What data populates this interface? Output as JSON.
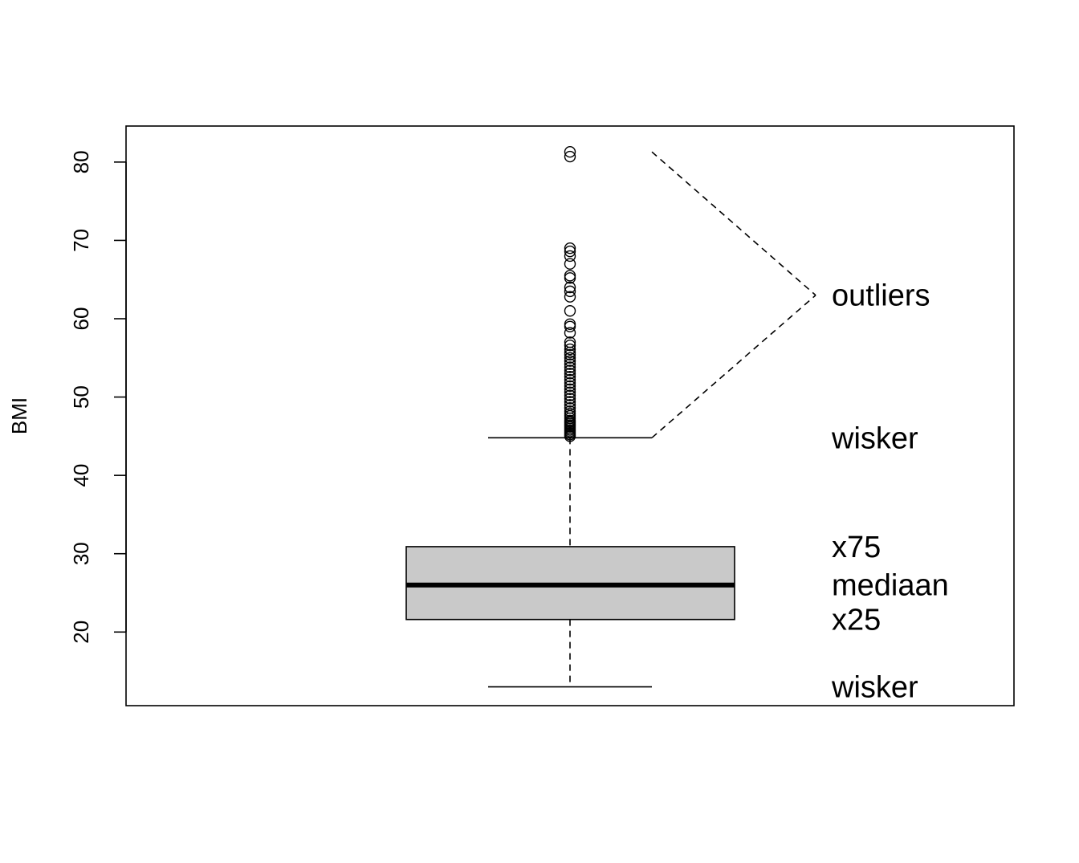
{
  "chart_data": {
    "type": "boxplot",
    "ylabel": "BMI",
    "ylim": [
      10.6,
      84.6
    ],
    "yticks": [
      20,
      30,
      40,
      50,
      60,
      70,
      80
    ],
    "grid": false,
    "box": {
      "whisker_low": 13,
      "q1": 21.6,
      "median": 26,
      "q3": 30.9,
      "whisker_high": 44.8,
      "fill": "#c9c9c9"
    },
    "outliers": [
      81.3,
      80.7,
      69.0,
      68.6,
      68.0,
      67.0,
      65.5,
      65.2,
      64.0,
      63.5,
      62.8,
      61.0,
      59.3,
      59.0,
      58.2,
      57.0,
      56.6,
      56.1,
      55.7,
      55.4,
      55.0,
      54.6,
      54.2,
      53.8,
      53.4,
      53.0,
      52.6,
      52.2,
      51.8,
      51.4,
      51.0,
      50.6,
      50.2,
      49.8,
      49.4,
      49.0,
      48.6,
      48.2,
      47.9,
      47.6,
      47.3,
      47.0,
      46.8,
      46.6,
      46.4,
      46.2,
      46.0,
      45.8,
      45.6,
      45.4,
      45.2,
      45.0
    ],
    "annotations": {
      "outliers": "outliers",
      "wisker_top": "wisker",
      "x75": "x75",
      "mediaan": "mediaan",
      "x25": "x25",
      "wisker_bottom": "wisker"
    }
  }
}
